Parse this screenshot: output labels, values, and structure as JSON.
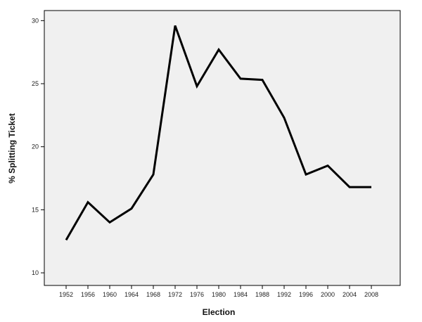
{
  "chart_data": {
    "type": "line",
    "title": "",
    "xlabel": "Election",
    "ylabel": "% Splitting Ticket",
    "categories": [
      "1952",
      "1956",
      "1960",
      "1964",
      "1968",
      "1972",
      "1976",
      "1980",
      "1984",
      "1988",
      "1992",
      "1996",
      "2000",
      "2004",
      "2008"
    ],
    "series": [
      {
        "values": [
          12.6,
          15.6,
          14.0,
          15.1,
          17.8,
          29.6,
          24.8,
          27.7,
          25.4,
          25.3,
          22.3,
          17.8,
          18.5,
          16.8,
          16.8
        ]
      }
    ],
    "ylim": [
      9.0,
      30.8
    ],
    "yticks": [
      "10",
      "15",
      "20",
      "25",
      "30"
    ],
    "grid": false,
    "legend": "none",
    "colors": {
      "plot_background": "#f0f0f0",
      "line": "#000000",
      "axis": "#000000"
    }
  }
}
